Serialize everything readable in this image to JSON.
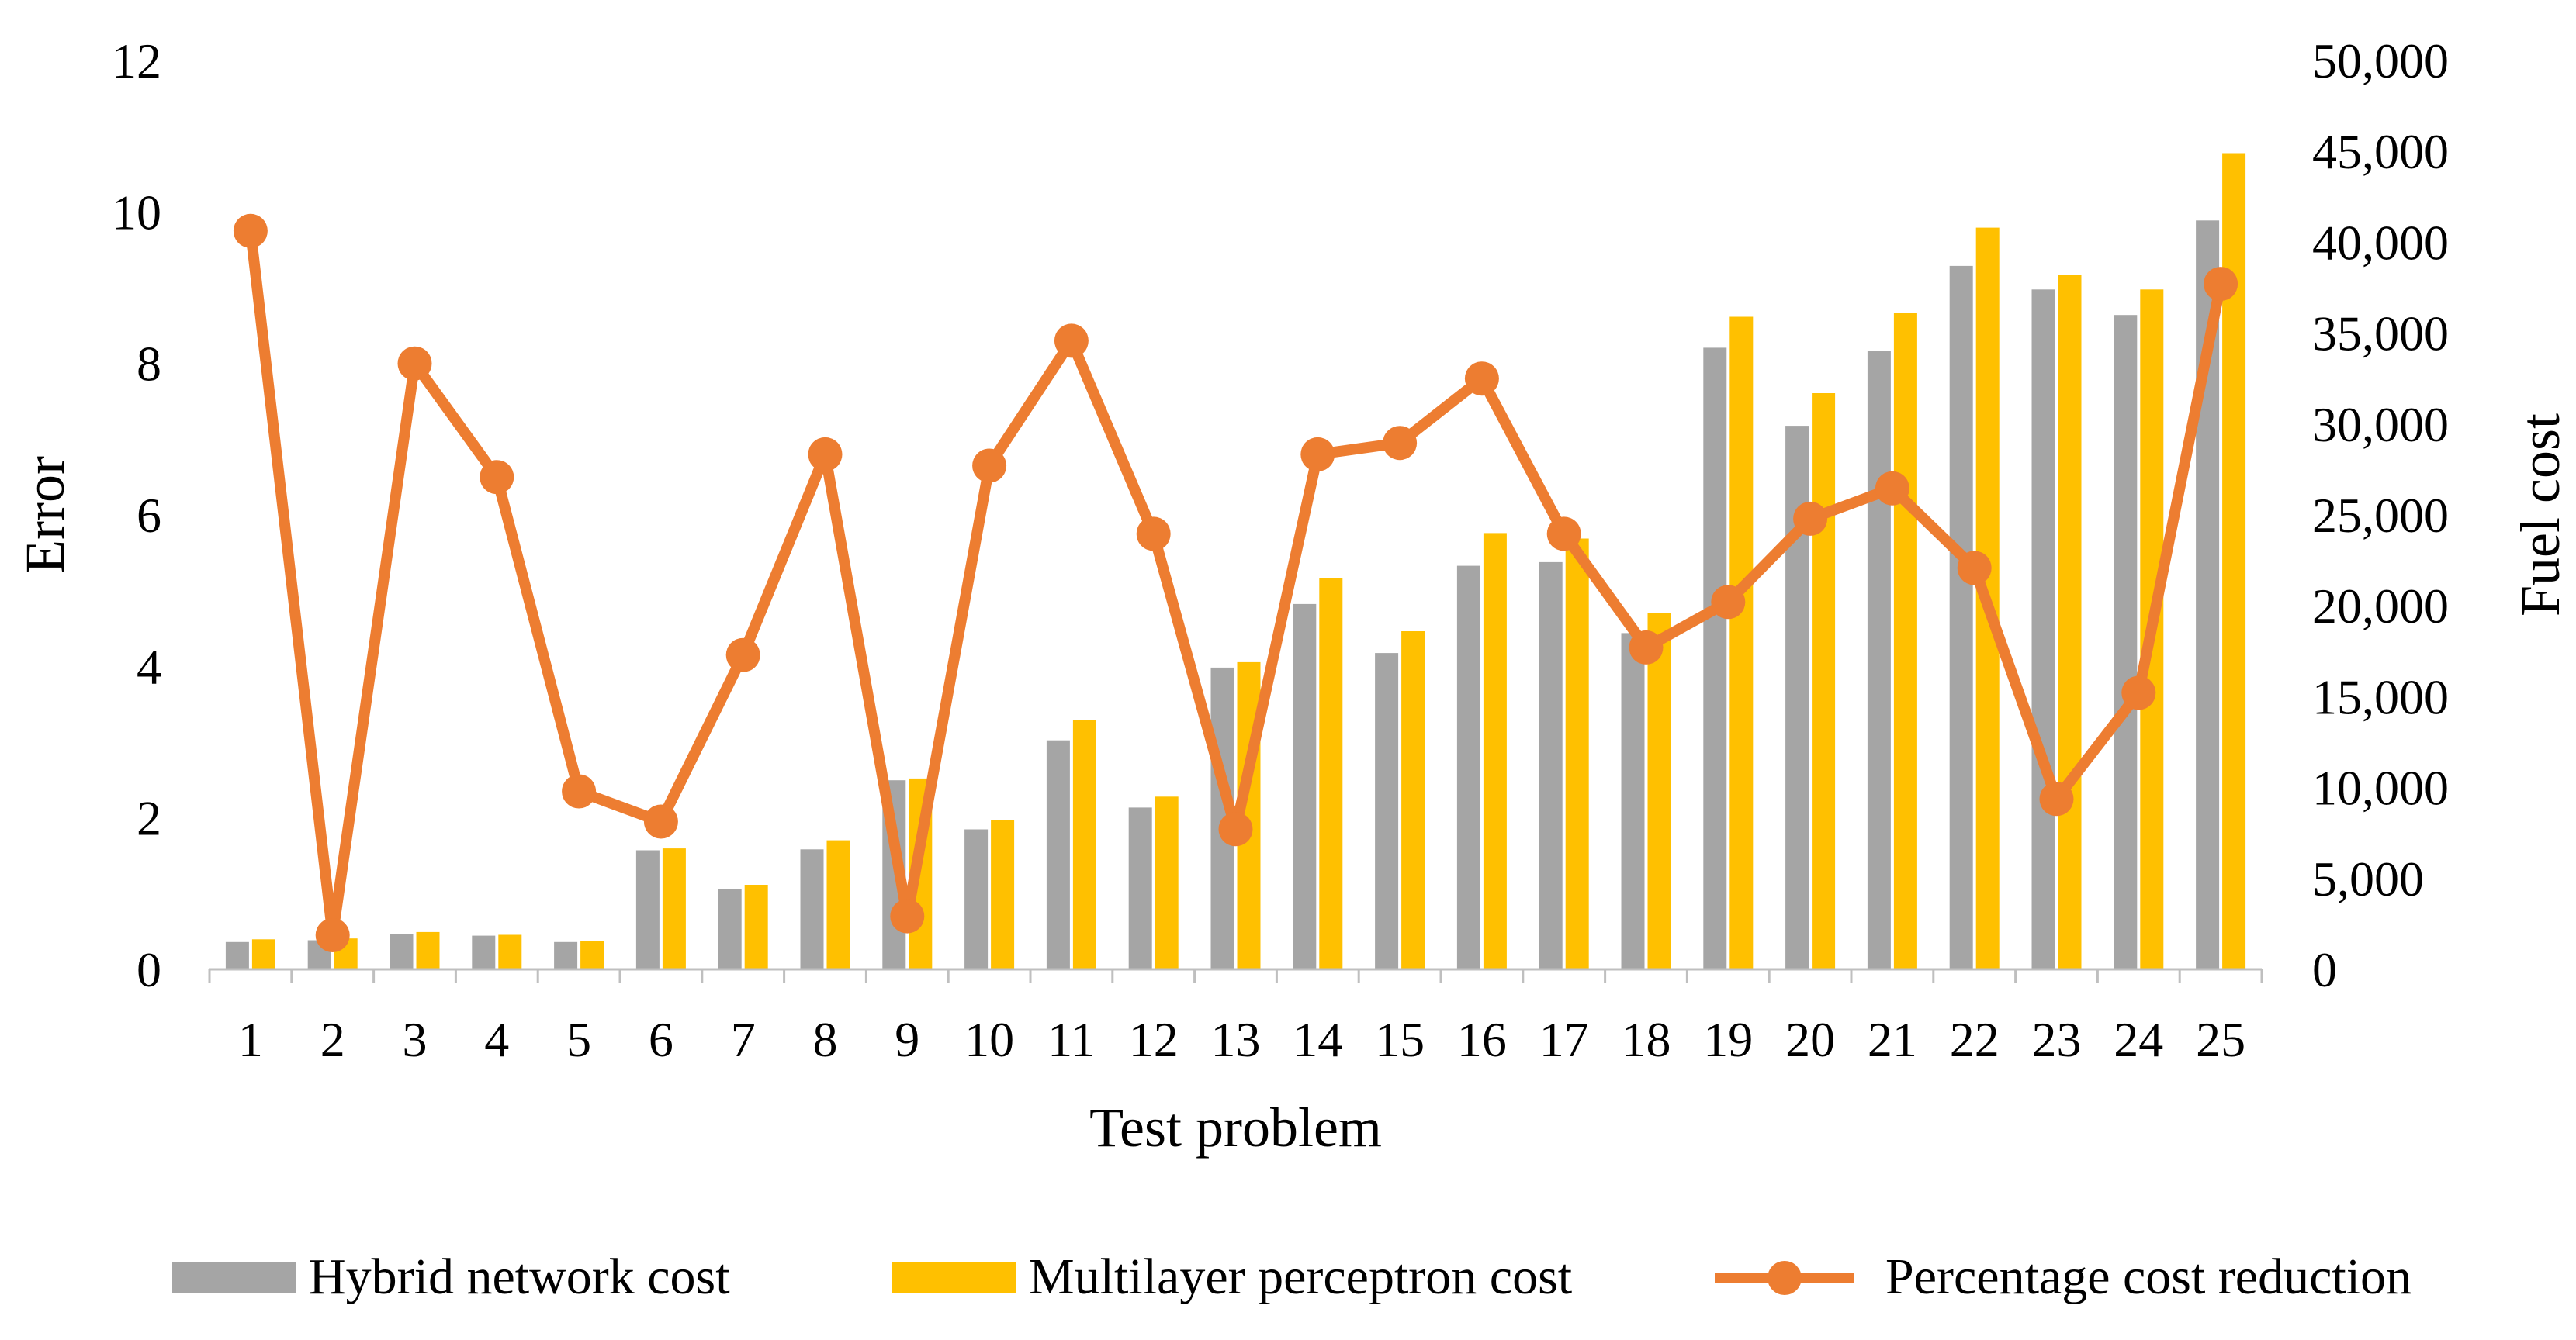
{
  "chart_data": {
    "type": "bar",
    "xlabel": "Test problem",
    "ylabel_left": "Error",
    "ylabel_right": "Fuel cost",
    "categories": [
      "1",
      "2",
      "3",
      "4",
      "5",
      "6",
      "7",
      "8",
      "9",
      "10",
      "11",
      "12",
      "13",
      "14",
      "15",
      "16",
      "17",
      "18",
      "19",
      "20",
      "21",
      "22",
      "23",
      "24",
      "25"
    ],
    "y_left": {
      "min": 0,
      "max": 12,
      "ticks": [
        0,
        2,
        4,
        6,
        8,
        10,
        12
      ],
      "tick_labels": [
        "0",
        "2",
        "4",
        "6",
        "8",
        "10",
        "12"
      ]
    },
    "y_right": {
      "min": 0,
      "max": 50000,
      "ticks": [
        0,
        5000,
        10000,
        15000,
        20000,
        25000,
        30000,
        35000,
        40000,
        45000,
        50000
      ],
      "tick_labels": [
        "0",
        "5,000",
        "10,000",
        "15,000",
        "20,000",
        "25,000",
        "30,000",
        "35,000",
        "40,000",
        "45,000",
        "50,000"
      ]
    },
    "series": [
      {
        "name": "Hybrid network cost",
        "kind": "bar",
        "axis": "right",
        "color": "#a5a5a5",
        "values": [
          1500,
          1600,
          1950,
          1850,
          1500,
          6550,
          4400,
          6600,
          10400,
          7700,
          12600,
          8900,
          16600,
          20100,
          17400,
          22200,
          22400,
          18500,
          34200,
          29900,
          34000,
          38700,
          37400,
          36000,
          41200
        ]
      },
      {
        "name": "Multilayer perceptron cost",
        "kind": "bar",
        "axis": "right",
        "color": "#ffc000",
        "values": [
          1650,
          1700,
          2050,
          1900,
          1550,
          6650,
          4650,
          7100,
          10500,
          8200,
          13700,
          9500,
          16900,
          21500,
          18600,
          24000,
          23700,
          19600,
          35900,
          31700,
          36100,
          40800,
          38200,
          37400,
          44900
        ]
      },
      {
        "name": "Percentage cost reduction",
        "kind": "line",
        "axis": "left",
        "color": "#ed7d31",
        "values": [
          9.75,
          0.45,
          8.0,
          6.5,
          2.35,
          1.95,
          4.15,
          6.8,
          0.7,
          6.65,
          8.3,
          5.75,
          1.85,
          6.8,
          6.95,
          7.8,
          5.75,
          4.25,
          4.85,
          5.95,
          6.35,
          5.3,
          2.25,
          3.65,
          9.05
        ]
      }
    ],
    "legend_position": "bottom",
    "grid": false
  }
}
